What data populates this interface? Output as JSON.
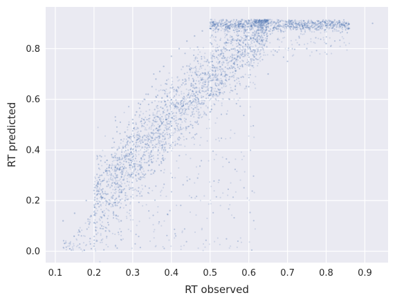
{
  "chart_data": {
    "type": "scatter",
    "title": "",
    "xlabel": "RT observed",
    "ylabel": "RT predicted",
    "xlim": [
      0.075,
      0.96
    ],
    "ylim": [
      -0.045,
      0.965
    ],
    "xticks": [
      0.1,
      0.2,
      0.3,
      0.4,
      0.5,
      0.6,
      0.7,
      0.8,
      0.9
    ],
    "yticks": [
      0.0,
      0.2,
      0.4,
      0.6,
      0.8
    ],
    "xtick_labels": [
      "0.1",
      "0.2",
      "0.3",
      "0.4",
      "0.5",
      "0.6",
      "0.7",
      "0.8",
      "0.9"
    ],
    "ytick_labels": [
      "0.0",
      "0.2",
      "0.4",
      "0.6",
      "0.8"
    ],
    "grid": true,
    "style": "seaborn darkgrid",
    "colors": {
      "background": "#eaeaf2",
      "grid": "#ffffff",
      "points": "#4c72b0"
    },
    "point_alpha": 0.18,
    "series": [
      {
        "x": [
          0.12,
          0.15,
          0.18,
          0.2,
          0.21,
          0.22,
          0.23,
          0.24,
          0.25,
          0.26,
          0.27,
          0.28,
          0.29,
          0.3,
          0.31,
          0.32,
          0.33,
          0.34,
          0.35,
          0.36,
          0.37,
          0.38,
          0.4,
          0.42,
          0.44,
          0.46,
          0.48,
          0.5,
          0.52,
          0.55,
          0.58,
          0.6,
          0.62,
          0.65,
          0.7,
          0.75,
          0.8,
          0.83,
          0.86,
          0.92,
          0.19,
          0.22,
          0.25,
          0.28,
          0.3,
          0.33,
          0.35,
          0.38,
          0.42,
          0.45,
          0.5,
          0.55,
          0.6,
          0.65,
          0.7,
          0.75,
          0.8,
          0.2,
          0.23,
          0.27
        ],
        "y": [
          0.12,
          0.15,
          0.2,
          0.24,
          0.27,
          0.3,
          0.32,
          0.34,
          0.37,
          0.4,
          0.44,
          0.47,
          0.5,
          0.52,
          0.55,
          0.58,
          0.6,
          0.62,
          0.65,
          0.68,
          0.71,
          0.73,
          0.77,
          0.8,
          0.83,
          0.85,
          0.87,
          0.88,
          0.89,
          0.89,
          0.9,
          0.9,
          0.9,
          0.9,
          0.89,
          0.89,
          0.89,
          0.9,
          0.88,
          0.9,
          0.05,
          0.1,
          0.15,
          0.2,
          0.25,
          0.3,
          0.35,
          0.4,
          0.45,
          0.5,
          0.55,
          0.6,
          0.65,
          0.7,
          0.75,
          0.8,
          0.82,
          0.02,
          0.08,
          0.12
        ]
      }
    ]
  }
}
